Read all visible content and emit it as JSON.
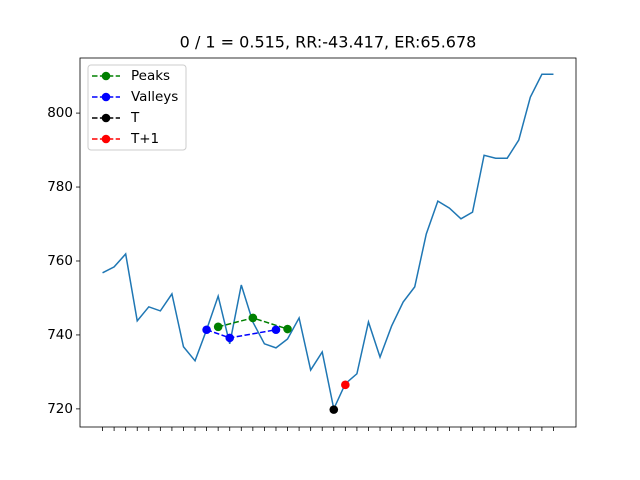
{
  "chart_data": {
    "type": "line",
    "title": "0 / 1 = 0.515, RR:-43.417, ER:65.678",
    "categories": [
      null,
      null,
      null,
      null,
      null,
      null,
      null,
      null,
      null,
      null,
      null,
      null,
      null,
      null,
      null,
      null,
      null,
      null,
      null,
      null,
      null,
      null,
      null,
      null,
      null,
      null,
      null,
      null,
      null,
      null,
      null,
      null,
      null,
      null,
      null,
      null,
      null,
      null,
      null,
      null
    ],
    "series": [
      {
        "color": "#1f77b4",
        "values": [
          756.8,
          758.4,
          761.9,
          743.8,
          747.6,
          746.5,
          751.1,
          736.8,
          733.0,
          741.4,
          750.5,
          737.6,
          753.5,
          743.5,
          737.6,
          736.5,
          738.9,
          744.6,
          730.5,
          735.4,
          720.0,
          726.8,
          729.5,
          743.5,
          734.0,
          742.4,
          748.9,
          753.0,
          767.3,
          776.2,
          774.3,
          771.4,
          773.2,
          788.6,
          787.8,
          787.8,
          792.7,
          804.3,
          810.5,
          810.5
        ]
      },
      {
        "name": "Peaks",
        "color": "green",
        "linestyle": "--",
        "marker": "o",
        "x": [
          10,
          13,
          16
        ],
        "values": [
          742.2,
          744.6,
          741.6
        ]
      },
      {
        "name": "Valleys",
        "color": "blue",
        "linestyle": "--",
        "marker": "o",
        "x": [
          9,
          11,
          15
        ],
        "values": [
          741.4,
          739.2,
          741.4
        ]
      },
      {
        "name": "T",
        "color": "black",
        "linestyle": "--",
        "marker": "o",
        "x": [
          20
        ],
        "values": [
          719.8
        ]
      },
      {
        "name": "T+1",
        "color": "red",
        "linestyle": "--",
        "marker": "o",
        "x": [
          21
        ],
        "values": [
          726.5
        ]
      }
    ],
    "ylim": [
      715.1,
      814.9
    ],
    "yticks": [
      720,
      740,
      760,
      780,
      800
    ],
    "legend": "upper left"
  }
}
